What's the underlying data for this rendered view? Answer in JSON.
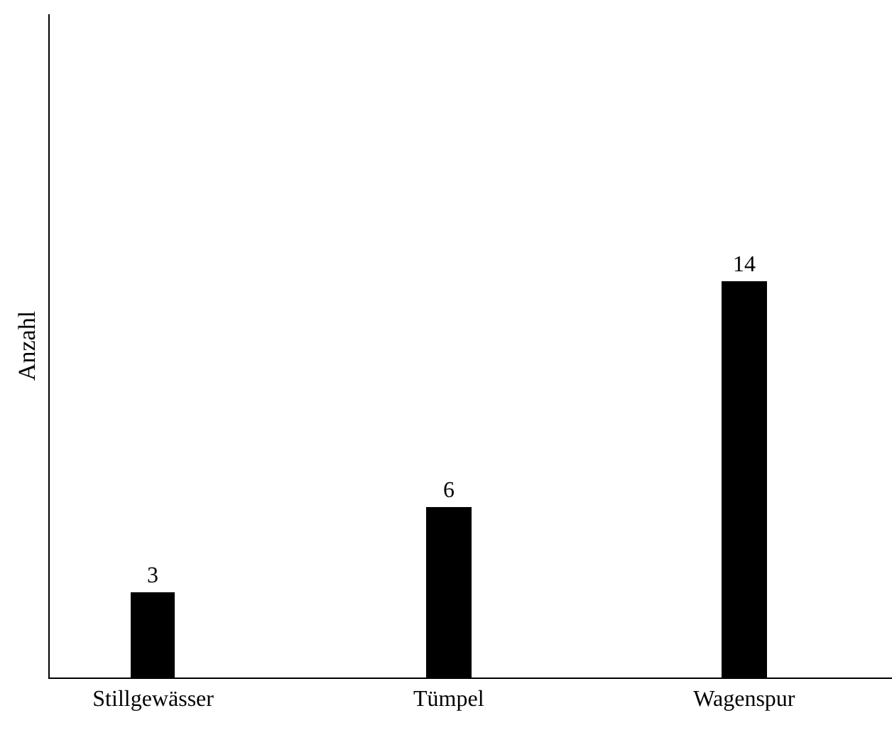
{
  "chart_data": {
    "type": "bar",
    "ylabel": "Anzahl",
    "categories": [
      "Stillgewässer",
      "Tümpel",
      "Wagenspur"
    ],
    "values": [
      3,
      6,
      14
    ],
    "color": "#000000",
    "ylim": [
      0,
      23.4
    ],
    "data_labels": true,
    "tick_labels": "x"
  }
}
